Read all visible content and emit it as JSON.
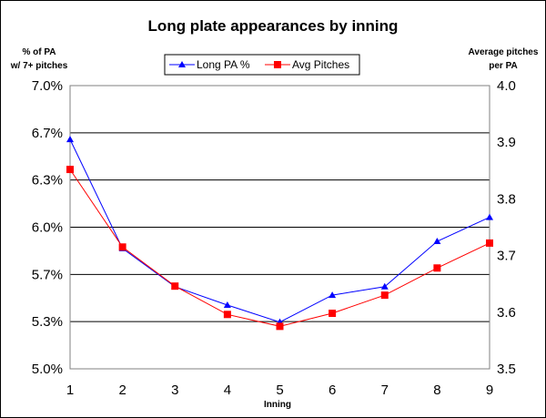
{
  "chart_data": {
    "type": "line",
    "title": "Long plate appearances by inning",
    "xlabel": "Inning",
    "ylabel_left": [
      "% of PA",
      "w/ 7+ pitches"
    ],
    "ylabel_right": [
      "Average pitches",
      "per PA"
    ],
    "categories": [
      "1",
      "2",
      "3",
      "4",
      "5",
      "6",
      "7",
      "8",
      "9"
    ],
    "y_left": {
      "min": 5.0,
      "max": 7.0,
      "ticks": [
        "5.0%",
        "5.3%",
        "5.7%",
        "6.0%",
        "6.3%",
        "6.7%",
        "7.0%"
      ]
    },
    "y_right": {
      "min": 3.5,
      "max": 4.0,
      "ticks": [
        "3.5",
        "3.6",
        "3.7",
        "3.8",
        "3.9",
        "4.0"
      ]
    },
    "grid": "horizontal",
    "legend_position": "top-center",
    "series": [
      {
        "name": "Long PA %",
        "axis": "left",
        "marker": "triangle",
        "color": "#0000FF",
        "values": [
          6.62,
          5.85,
          5.58,
          5.45,
          5.33,
          5.52,
          5.58,
          5.9,
          6.07
        ]
      },
      {
        "name": "Avg Pitches",
        "axis": "right",
        "marker": "square",
        "color": "#FF0000",
        "values": [
          3.852,
          3.715,
          3.646,
          3.596,
          3.575,
          3.598,
          3.63,
          3.678,
          3.722
        ]
      }
    ]
  }
}
